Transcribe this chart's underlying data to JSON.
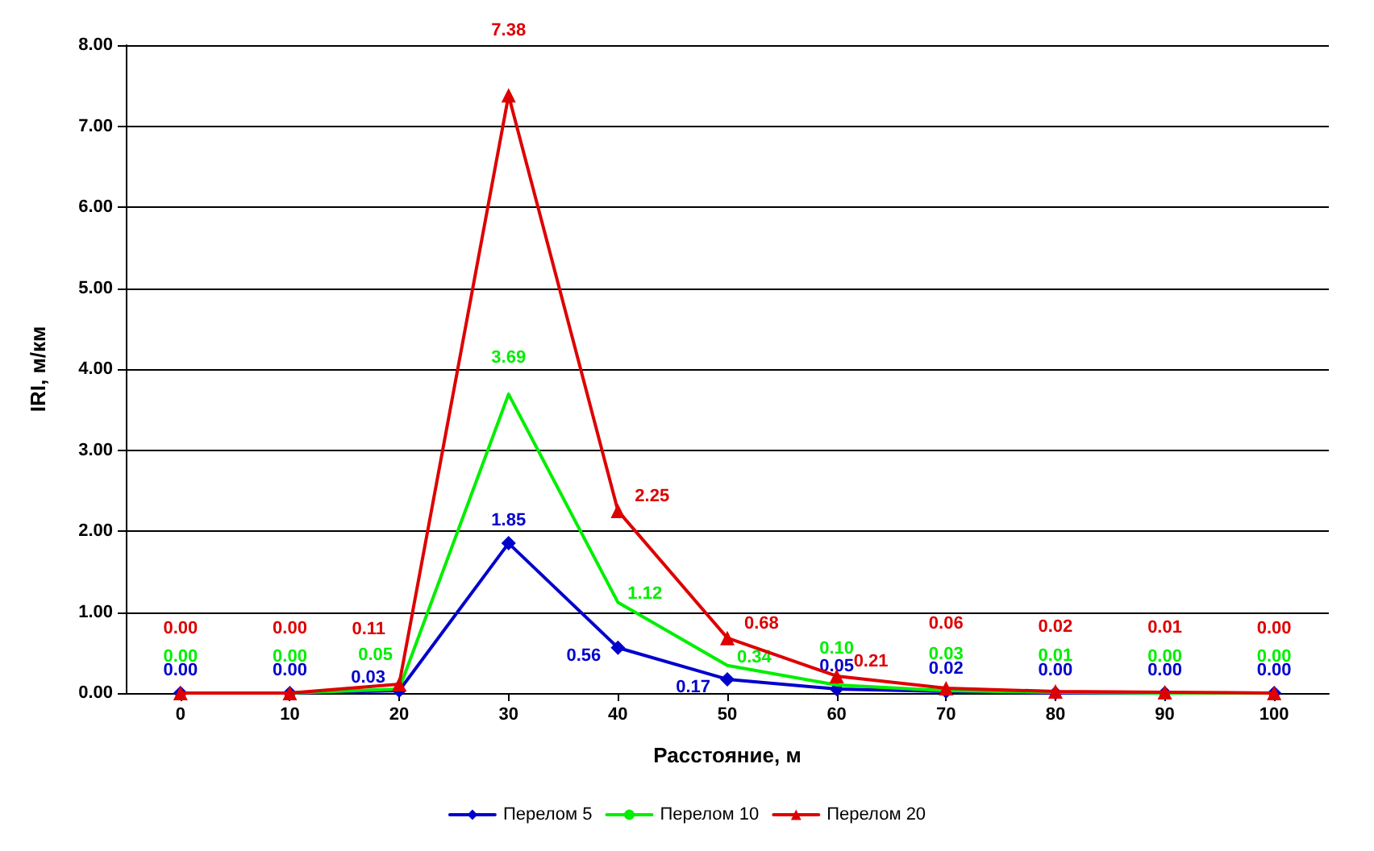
{
  "chart_data": {
    "type": "line",
    "xlabel": "Расстояние, м",
    "ylabel": "IRI, м/км",
    "categories": [
      "0",
      "10",
      "20",
      "30",
      "40",
      "50",
      "60",
      "70",
      "80",
      "90",
      "100"
    ],
    "series": [
      {
        "name": "Перелом 5",
        "color": "#0000cc",
        "marker": "diamond",
        "values": [
          0,
          0,
          0.03,
          1.85,
          0.56,
          0.17,
          0.05,
          0.02,
          0,
          0,
          0
        ],
        "value_labels": [
          "0.00",
          "0.00",
          "0.03",
          "1.85",
          "0.56",
          "0.17",
          "0.05",
          "0.02",
          "0.00",
          "0.00",
          "0.00"
        ]
      },
      {
        "name": "Перелом 10",
        "color": "#00ee00",
        "marker": "none",
        "values": [
          0,
          0,
          0.05,
          3.69,
          1.12,
          0.34,
          0.1,
          0.03,
          0.01,
          0,
          0
        ],
        "value_labels": [
          "0.00",
          "0.00",
          "0.05",
          "3.69",
          "1.12",
          "0.34",
          "0.10",
          "0.03",
          "0.01",
          "0.00",
          "0.00"
        ]
      },
      {
        "name": "Перелом 20",
        "color": "#dd0000",
        "marker": "triangle",
        "values": [
          0,
          0,
          0.11,
          7.38,
          2.25,
          0.68,
          0.21,
          0.06,
          0.02,
          0.01,
          0
        ],
        "value_labels": [
          "0.00",
          "0.00",
          "0.11",
          "7.38",
          "2.25",
          "0.68",
          "0.21",
          "0.06",
          "0.02",
          "0.01",
          "0.00"
        ]
      }
    ],
    "ylim": [
      0,
      8
    ],
    "yticks": [
      {
        "value": 0,
        "label": "0.00"
      },
      {
        "value": 1,
        "label": "1.00"
      },
      {
        "value": 2,
        "label": "2.00"
      },
      {
        "value": 3,
        "label": "3.00"
      },
      {
        "value": 4,
        "label": "4.00"
      },
      {
        "value": 5,
        "label": "5.00"
      },
      {
        "value": 6,
        "label": "6.00"
      },
      {
        "value": 7,
        "label": "7.00"
      },
      {
        "value": 8,
        "label": "8.00"
      }
    ],
    "grid": "y",
    "legend": "bottom"
  }
}
